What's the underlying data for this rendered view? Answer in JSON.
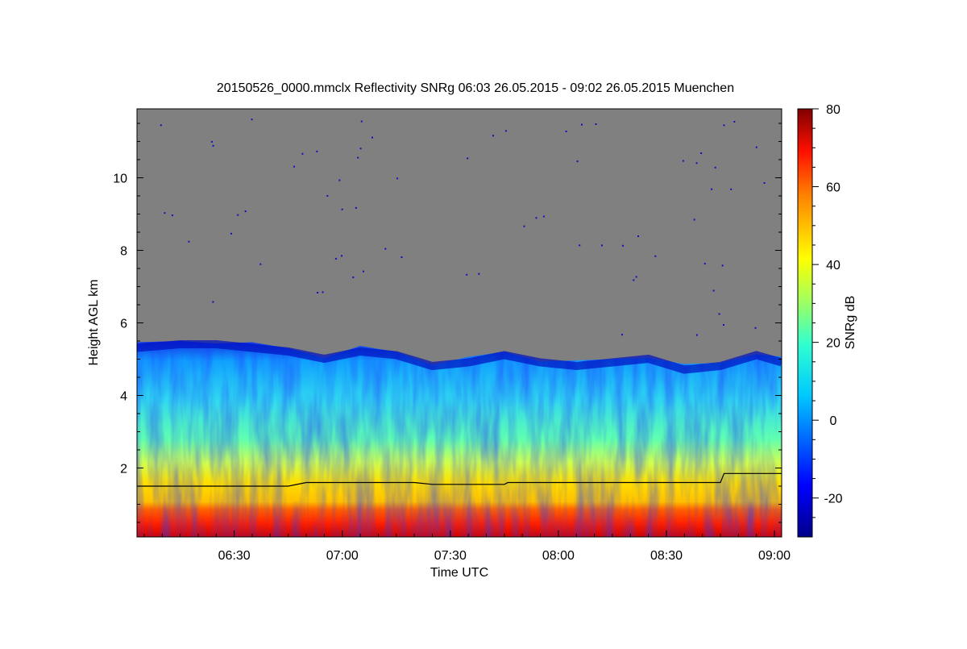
{
  "chart_data": {
    "type": "heatmap",
    "title": "20150526_0000.mmclx Reflectivity SNRg   06:03 26.05.2015 - 09:02 26.05.2015 Muenchen",
    "xlabel": "Time UTC",
    "ylabel": "Height AGL km",
    "x_range": [
      "06:03",
      "09:02"
    ],
    "x_ticks": [
      "06:30",
      "07:00",
      "07:30",
      "08:00",
      "08:30",
      "09:00"
    ],
    "y_range": [
      0.1,
      11.9
    ],
    "y_ticks": [
      2,
      4,
      6,
      8,
      10
    ],
    "background_color": "#808080",
    "colorbar": {
      "label": "SNRg dB",
      "range": [
        -30,
        80
      ],
      "ticks": [
        -20,
        0,
        20,
        40,
        60,
        80
      ],
      "colormap": "jet"
    },
    "echo_top_km": [
      {
        "t": "06:03",
        "h": 5.4
      },
      {
        "t": "06:15",
        "h": 5.5
      },
      {
        "t": "06:25",
        "h": 5.5
      },
      {
        "t": "06:35",
        "h": 5.4
      },
      {
        "t": "06:45",
        "h": 5.3
      },
      {
        "t": "06:55",
        "h": 5.1
      },
      {
        "t": "07:05",
        "h": 5.3
      },
      {
        "t": "07:15",
        "h": 5.2
      },
      {
        "t": "07:25",
        "h": 4.9
      },
      {
        "t": "07:35",
        "h": 5.0
      },
      {
        "t": "07:45",
        "h": 5.2
      },
      {
        "t": "07:55",
        "h": 5.0
      },
      {
        "t": "08:05",
        "h": 4.9
      },
      {
        "t": "08:15",
        "h": 5.0
      },
      {
        "t": "08:25",
        "h": 5.1
      },
      {
        "t": "08:35",
        "h": 4.8
      },
      {
        "t": "08:45",
        "h": 4.9
      },
      {
        "t": "08:55",
        "h": 5.2
      },
      {
        "t": "09:02",
        "h": 5.0
      }
    ],
    "boundary_layer_line_km": [
      {
        "t": "06:03",
        "h": 1.5
      },
      {
        "t": "06:45",
        "h": 1.5
      },
      {
        "t": "06:50",
        "h": 1.6
      },
      {
        "t": "07:20",
        "h": 1.6
      },
      {
        "t": "07:25",
        "h": 1.55
      },
      {
        "t": "07:45",
        "h": 1.55
      },
      {
        "t": "07:46",
        "h": 1.6
      },
      {
        "t": "08:45",
        "h": 1.6
      },
      {
        "t": "08:46",
        "h": 1.85
      },
      {
        "t": "09:02",
        "h": 1.85
      }
    ]
  }
}
